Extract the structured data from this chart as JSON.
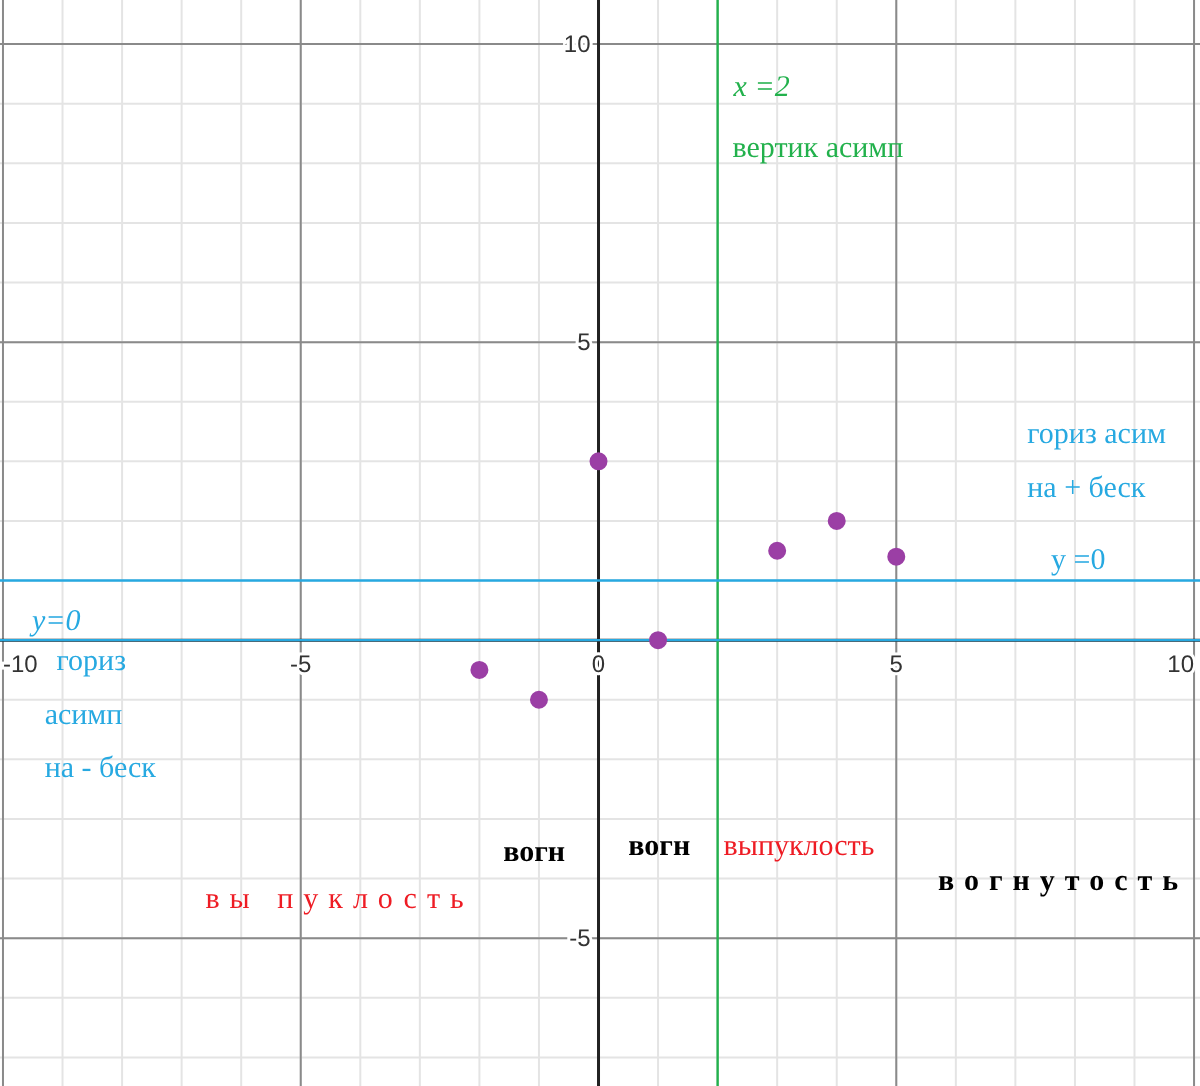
{
  "chart_data": {
    "type": "scatter",
    "x": [
      -2,
      -1,
      0,
      1,
      3,
      4,
      5
    ],
    "values": [
      -0.5,
      -1,
      3,
      0,
      1.5,
      2,
      1.4
    ],
    "color": "#9b3fa5",
    "marker": "circle",
    "xlim": [
      -10.05,
      10.1
    ],
    "ylim": [
      -7.48,
      10.74
    ],
    "xticks": [
      -10,
      -5,
      0,
      5,
      10
    ],
    "yticks": [
      -5,
      5,
      10
    ],
    "grid": true,
    "ref_lines": [
      {
        "axis": "x",
        "value": 2,
        "label": "x =2",
        "color": "#22b14c"
      },
      {
        "axis": "y",
        "value": 0,
        "label": "y=0",
        "color": "#27a9e1"
      },
      {
        "axis": "y",
        "value": 1,
        "color": "#27a9e1"
      }
    ],
    "annotations": [
      "вертик асимп",
      "гориз асим",
      "на + беск",
      "y =0",
      "гориз",
      "асимп",
      "на - беск",
      "вогн",
      "вогн",
      "выпуклость",
      "вы пуклость",
      "вогнутость"
    ]
  }
}
